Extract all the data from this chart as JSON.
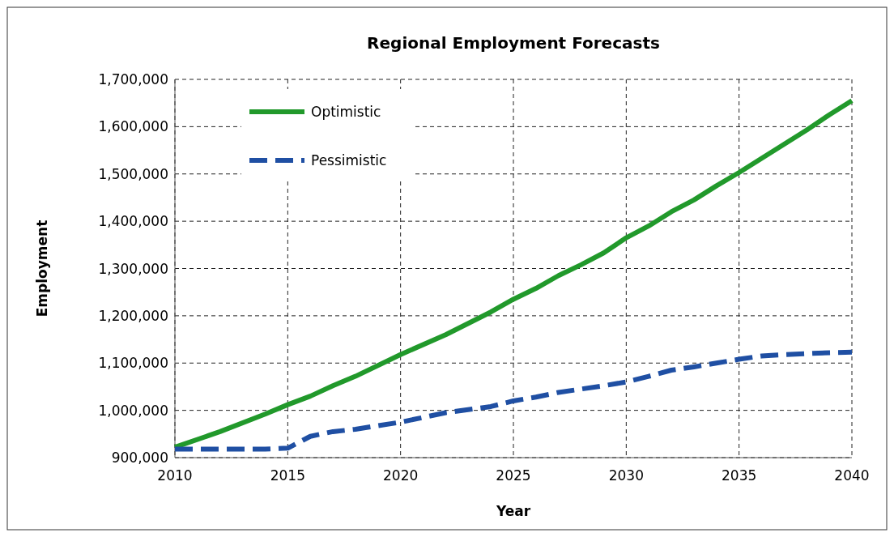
{
  "chart_data": {
    "type": "line",
    "title": "Regional Employment Forecasts",
    "xlabel": "Year",
    "ylabel": "Employment",
    "x": [
      2010,
      2012,
      2014,
      2015,
      2016,
      2017,
      2018,
      2020,
      2022,
      2024,
      2025,
      2026,
      2027,
      2028,
      2029,
      2030,
      2031,
      2032,
      2033,
      2034,
      2035,
      2036,
      2037,
      2038,
      2039,
      2040
    ],
    "series": [
      {
        "name": "Optimistic",
        "color": "#21992b",
        "line_style": "solid",
        "values": [
          922000,
          955000,
          992000,
          1012000,
          1030000,
          1052000,
          1072000,
          1118000,
          1160000,
          1208000,
          1235000,
          1258000,
          1285000,
          1308000,
          1333000,
          1365000,
          1390000,
          1420000,
          1445000,
          1475000,
          1503000,
          1533000,
          1563000,
          1593000,
          1625000,
          1655000
        ]
      },
      {
        "name": "Pessimistic",
        "color": "#1f4fa3",
        "line_style": "dashed",
        "values": [
          918000,
          918000,
          918000,
          920000,
          945000,
          955000,
          960000,
          975000,
          995000,
          1008000,
          1020000,
          1028000,
          1038000,
          1045000,
          1052000,
          1060000,
          1072000,
          1085000,
          1092000,
          1100000,
          1108000,
          1115000,
          1118000,
          1120000,
          1122000,
          1123000
        ]
      }
    ],
    "xlim": [
      2010,
      2040
    ],
    "xticks": [
      2010,
      2015,
      2020,
      2025,
      2030,
      2035,
      2040
    ],
    "ylim": [
      900000,
      1700000
    ],
    "yticks": [
      {
        "value": 900000,
        "label": "900,000"
      },
      {
        "value": 1000000,
        "label": "1,000,000"
      },
      {
        "value": 1100000,
        "label": "1,100,000"
      },
      {
        "value": 1200000,
        "label": "1,200,000"
      },
      {
        "value": 1300000,
        "label": "1,300,000"
      },
      {
        "value": 1400000,
        "label": "1,400,000"
      },
      {
        "value": 1500000,
        "label": "1,500,000"
      },
      {
        "value": 1600000,
        "label": "1,600,000"
      },
      {
        "value": 1700000,
        "label": "1,700,000"
      }
    ],
    "grid": true,
    "legend": "top left"
  }
}
